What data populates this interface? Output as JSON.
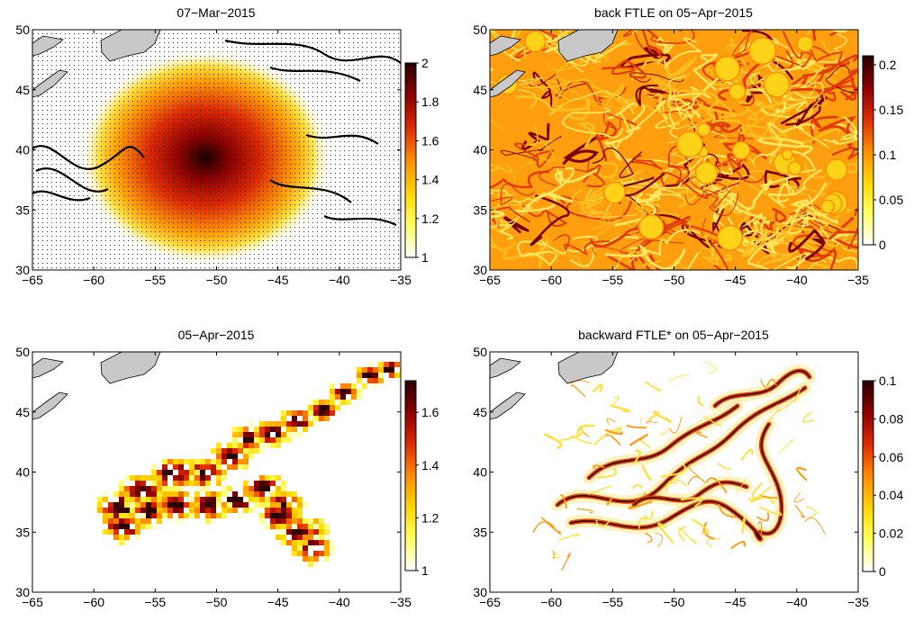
{
  "figure": {
    "colormap": [
      "#ffffff",
      "#ffff60",
      "#ffd700",
      "#ff8c00",
      "#dd2a00",
      "#8b0000",
      "#2a0000"
    ],
    "land_color": "#c8c8c8"
  },
  "chart_data": [
    {
      "type": "heatmap",
      "title": "07−Mar−2015",
      "field": "magnitude with velocity quiver overlay",
      "x_ticks": [
        "−65",
        "−60",
        "−55",
        "−50",
        "−45",
        "−40",
        "−35"
      ],
      "y_ticks": [
        "30",
        "35",
        "40",
        "45",
        "50"
      ],
      "xlim": [
        -65,
        -35
      ],
      "ylim": [
        30,
        50
      ],
      "colorbar": {
        "range": [
          1,
          2
        ],
        "ticks": [
          "1",
          "1.2",
          "1.4",
          "1.6",
          "1.8",
          "2"
        ],
        "tick_values": [
          1,
          1.2,
          1.4,
          1.6,
          1.8,
          2
        ]
      },
      "peak": {
        "x": -51.5,
        "y": 38.5,
        "value": 2
      },
      "quiver": true
    },
    {
      "type": "heatmap",
      "title": "back FTLE on 05−Apr−2015",
      "field": "backward FTLE (dense filaments everywhere)",
      "x_ticks": [
        "−65",
        "−60",
        "−55",
        "−50",
        "−45",
        "−40",
        "−35"
      ],
      "y_ticks": [
        "30",
        "35",
        "40",
        "45",
        "50"
      ],
      "xlim": [
        -65,
        -35
      ],
      "ylim": [
        30,
        50
      ],
      "colorbar": {
        "range": [
          0,
          0.21
        ],
        "ticks": [
          "0",
          "0.05",
          "0.1",
          "0.15",
          "0.2"
        ],
        "tick_values": [
          0,
          0.05,
          0.1,
          0.15,
          0.2
        ]
      },
      "quiver": false
    },
    {
      "type": "heatmap",
      "title": "05−Apr−2015",
      "field": "magnitude (pixelated band of advected patch)",
      "x_ticks": [
        "−65",
        "−60",
        "−55",
        "−50",
        "−45",
        "−40",
        "−35"
      ],
      "y_ticks": [
        "30",
        "35",
        "40",
        "45",
        "50"
      ],
      "xlim": [
        -65,
        -35
      ],
      "ylim": [
        30,
        50
      ],
      "colorbar": {
        "range": [
          1,
          1.72
        ],
        "ticks": [
          "1",
          "1.2",
          "1.4",
          "1.6"
        ],
        "tick_values": [
          1,
          1.2,
          1.4,
          1.6
        ]
      },
      "quiver": false
    },
    {
      "type": "heatmap",
      "title": "backward FTLE* on 05−Apr−2015",
      "field": "backward FTLE* (ridges inside advected patch)",
      "x_ticks": [
        "−65",
        "−60",
        "−55",
        "−50",
        "−45",
        "−40",
        "−35"
      ],
      "y_ticks": [
        "30",
        "35",
        "40",
        "45",
        "50"
      ],
      "xlim": [
        -65,
        -35
      ],
      "ylim": [
        30,
        50
      ],
      "colorbar": {
        "range": [
          0,
          0.1
        ],
        "ticks": [
          "0",
          "0.02",
          "0.04",
          "0.06",
          "0.08",
          "0.1"
        ],
        "tick_values": [
          0,
          0.02,
          0.04,
          0.06,
          0.08,
          0.1
        ]
      },
      "quiver": false
    }
  ]
}
